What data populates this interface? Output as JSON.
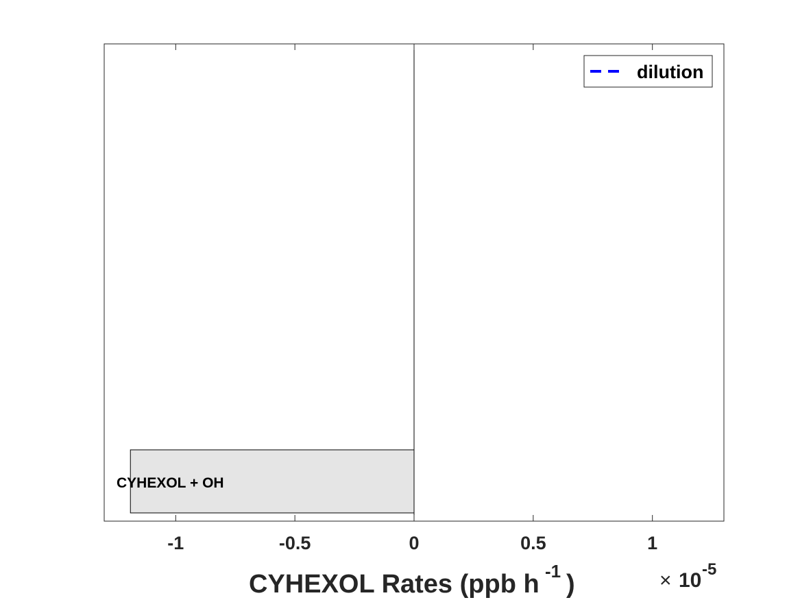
{
  "chart_data": {
    "type": "bar",
    "orientation": "horizontal",
    "categories": [
      "CYHEXOL + OH"
    ],
    "values": [
      -1.19e-05
    ],
    "bar_color": "#e5e5e5",
    "xlim": [
      -1.3e-05,
      1.3e-05
    ],
    "xticks": [
      -1e-05,
      -5e-06,
      0,
      5e-06,
      1e-05
    ],
    "xtick_labels": [
      "-1",
      "-0.5",
      "0",
      "0.5",
      "1"
    ],
    "x_multiplier": "10",
    "x_multiplier_exponent": "-5",
    "x_multiplier_prefix": "×",
    "xlabel_main": "CYHEXOL Rates (ppb h",
    "xlabel_sup": "-1",
    "xlabel_tail": ")",
    "legend": {
      "entries": [
        {
          "name": "dilution",
          "color": "#0000ff",
          "style": "dashed"
        }
      ],
      "position": "top-right"
    },
    "grid": false
  }
}
